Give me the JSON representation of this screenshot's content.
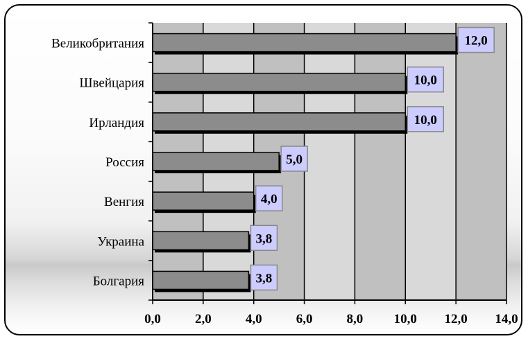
{
  "chart_data": {
    "type": "bar",
    "orientation": "horizontal",
    "title": "",
    "xlabel": "",
    "ylabel": "",
    "categories": [
      "Великобритания",
      "Швейцария",
      "Ирландия",
      "Россия",
      "Венгия",
      "Украина",
      "Болгария"
    ],
    "values": [
      12.0,
      10.0,
      10.0,
      5.0,
      4.0,
      3.8,
      3.8
    ],
    "data_labels": [
      "12,0",
      "10,0",
      "10,0",
      "5,0",
      "4,0",
      "3,8",
      "3,8"
    ],
    "xlim": [
      0,
      14
    ],
    "x_ticks": [
      0,
      2,
      4,
      6,
      8,
      10,
      12,
      14
    ],
    "x_tick_labels": [
      "0,0",
      "2,0",
      "4,0",
      "6,0",
      "8,0",
      "10,0",
      "12,0",
      "14,0"
    ],
    "grid": true,
    "legend": "none",
    "colors": {
      "bar_fill": "#8c8c8c",
      "bar_shadow": "#000000",
      "plot_background": "#c0c0c0",
      "plot_band_light": "#d9d9d9",
      "data_label_fill": "#ccccff",
      "gridline": "#000000"
    }
  }
}
